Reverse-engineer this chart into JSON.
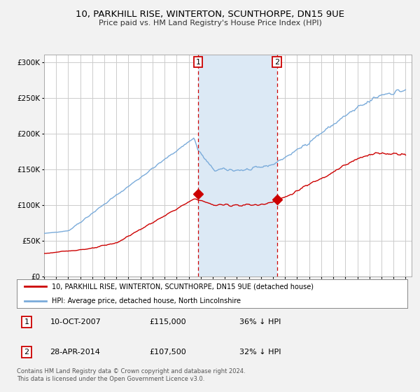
{
  "title": "10, PARKHILL RISE, WINTERTON, SCUNTHORPE, DN15 9UE",
  "subtitle": "Price paid vs. HM Land Registry's House Price Index (HPI)",
  "legend_line1": "10, PARKHILL RISE, WINTERTON, SCUNTHORPE, DN15 9UE (detached house)",
  "legend_line2": "HPI: Average price, detached house, North Lincolnshire",
  "sale1_date": "10-OCT-2007",
  "sale1_price": 115000,
  "sale1_label": "36% ↓ HPI",
  "sale2_date": "28-APR-2014",
  "sale2_price": 107500,
  "sale2_label": "32% ↓ HPI",
  "footnote": "Contains HM Land Registry data © Crown copyright and database right 2024.\nThis data is licensed under the Open Government Licence v3.0.",
  "hpi_color": "#7aabda",
  "price_color": "#cc0000",
  "shade_color": "#dce9f5",
  "vline_color": "#cc0000",
  "background_color": "#f2f2f2",
  "plot_bg_color": "#ffffff",
  "grid_color": "#cccccc",
  "ylim": [
    0,
    310000
  ],
  "yticks": [
    0,
    50000,
    100000,
    150000,
    200000,
    250000,
    300000
  ],
  "sale1_x": 2007.78,
  "sale2_x": 2014.32
}
